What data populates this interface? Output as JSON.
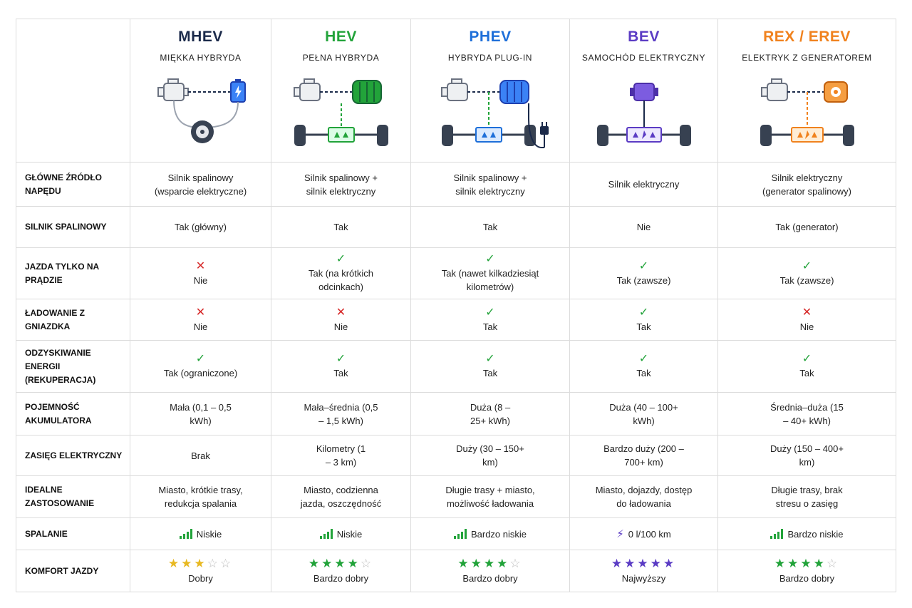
{
  "colors": {
    "mhev": "#1b2a4a",
    "hev": "#22a33a",
    "phev": "#1e6fd9",
    "bev": "#5b3cc4",
    "rex": "#f0821e",
    "check": "#22a33a",
    "cross": "#d62828",
    "star_gold": "#e8b923",
    "star_empty": "#bdbdbd"
  },
  "columns": [
    {
      "abbr": "MHEV",
      "subtitle": "MIĘKKA HYBRYDA",
      "icon": "mhev-diagram"
    },
    {
      "abbr": "HEV",
      "subtitle": "PEŁNA HYBRYDA",
      "icon": "hev-diagram"
    },
    {
      "abbr": "PHEV",
      "subtitle": "HYBRYDA PLUG-IN",
      "icon": "phev-diagram"
    },
    {
      "abbr": "BEV",
      "subtitle": "SAMOCHÓD ELEKTRYCZNY",
      "icon": "bev-diagram"
    },
    {
      "abbr": "REX / EREV",
      "subtitle": "ELEKTRYK Z GENERATOREM",
      "icon": "rex-diagram"
    }
  ],
  "rows": [
    {
      "label": "GŁÓWNE ŹRÓDŁO NAPĘDU",
      "cells": [
        {
          "text": "Silnik spalinowy (wsparcie elektryczne)"
        },
        {
          "text": "Silnik spalinowy + silnik elektryczny"
        },
        {
          "text": "Silnik spalinowy + silnik elektryczny"
        },
        {
          "text": "Silnik elektryczny"
        },
        {
          "text": "Silnik elektryczny (generator spalinowy)"
        }
      ]
    },
    {
      "label": "SILNIK SPALINOWY",
      "cells": [
        {
          "text": "Tak (główny)"
        },
        {
          "text": "Tak"
        },
        {
          "text": "Tak"
        },
        {
          "text": "Nie"
        },
        {
          "text": "Tak (generator)"
        }
      ]
    },
    {
      "label": "JAZDA TYLKO NA PRĄDZIE",
      "cells": [
        {
          "mark": "✕",
          "status": "no",
          "text": "Nie"
        },
        {
          "mark": "✓",
          "status": "yes",
          "text": "Tak (na krótkich odcinkach)"
        },
        {
          "mark": "✓",
          "status": "yes",
          "text": "Tak (nawet kilkadziesiąt kilometrów)"
        },
        {
          "mark": "✓",
          "status": "yes",
          "text": "Tak (zawsze)"
        },
        {
          "mark": "✓",
          "status": "yes",
          "text": "Tak (zawsze)"
        }
      ]
    },
    {
      "label": "ŁADOWANIE Z GNIAZDKA",
      "cells": [
        {
          "mark": "✕",
          "status": "no",
          "text": "Nie"
        },
        {
          "mark": "✕",
          "status": "no",
          "text": "Nie"
        },
        {
          "mark": "✓",
          "status": "yes",
          "text": "Tak"
        },
        {
          "mark": "✓",
          "status": "yes",
          "text": "Tak"
        },
        {
          "mark": "✕",
          "status": "no",
          "text": "Nie"
        }
      ]
    },
    {
      "label": "ODZYSKIWANIE ENERGII (REKUPERACJA)",
      "cells": [
        {
          "mark": "✓",
          "status": "yes",
          "text": "Tak (ograniczone)"
        },
        {
          "mark": "✓",
          "status": "yes",
          "text": "Tak"
        },
        {
          "mark": "✓",
          "status": "yes",
          "text": "Tak"
        },
        {
          "mark": "✓",
          "status": "yes",
          "text": "Tak"
        },
        {
          "mark": "✓",
          "status": "yes",
          "text": "Tak"
        }
      ]
    },
    {
      "label": "POJEMNOŚĆ AKUMULATORA",
      "cells": [
        {
          "text": "Mała (0,1 – 0,5 kWh)"
        },
        {
          "text": "Mała–średnia (0,5 – 1,5 kWh)"
        },
        {
          "text": "Duża (8 – 25+ kWh)"
        },
        {
          "text": "Duża (40 – 100+ kWh)"
        },
        {
          "text": "Średnia–duża (15 – 40+ kWh)"
        }
      ]
    },
    {
      "label": "ZASIĘG ELEKTRYCZNY",
      "cells": [
        {
          "text": "Brak"
        },
        {
          "text": "Kilometry (1 – 3 km)"
        },
        {
          "text": "Duży (30 – 150+ km)"
        },
        {
          "text": "Bardzo duży (200 – 700+ km)"
        },
        {
          "text": "Duży (150 – 400+ km)"
        }
      ]
    },
    {
      "label": "IDEALNE ZASTOSOWANIE",
      "cells": [
        {
          "text": "Miasto, krótkie trasy, redukcja spalania"
        },
        {
          "text": "Miasto, codzienna jazda, oszczędność"
        },
        {
          "text": "Długie trasy + miasto, możliwość ładowania"
        },
        {
          "text": "Miasto, dojazdy, dostęp do ładowania"
        },
        {
          "text": "Długie trasy, brak stresu o zasięg"
        }
      ]
    },
    {
      "label": "SPALANIE",
      "cells": [
        {
          "icon": "signal-bars-icon",
          "text": "Niskie"
        },
        {
          "icon": "signal-bars-icon",
          "text": "Niskie"
        },
        {
          "icon": "signal-bars-icon",
          "text": "Bardzo niskie"
        },
        {
          "icon": "lightning-icon",
          "text": "0 l/100 km"
        },
        {
          "icon": "signal-bars-icon",
          "text": "Bardzo niskie"
        }
      ]
    },
    {
      "label": "KOMFORT JAZDY",
      "cells": [
        {
          "rating": 3,
          "text": "Dobry"
        },
        {
          "rating": 4,
          "text": "Bardzo dobry"
        },
        {
          "rating": 4,
          "text": "Bardzo dobry"
        },
        {
          "rating": 5,
          "text": "Najwyższy"
        },
        {
          "rating": 4,
          "text": "Bardzo dobry"
        }
      ]
    }
  ]
}
